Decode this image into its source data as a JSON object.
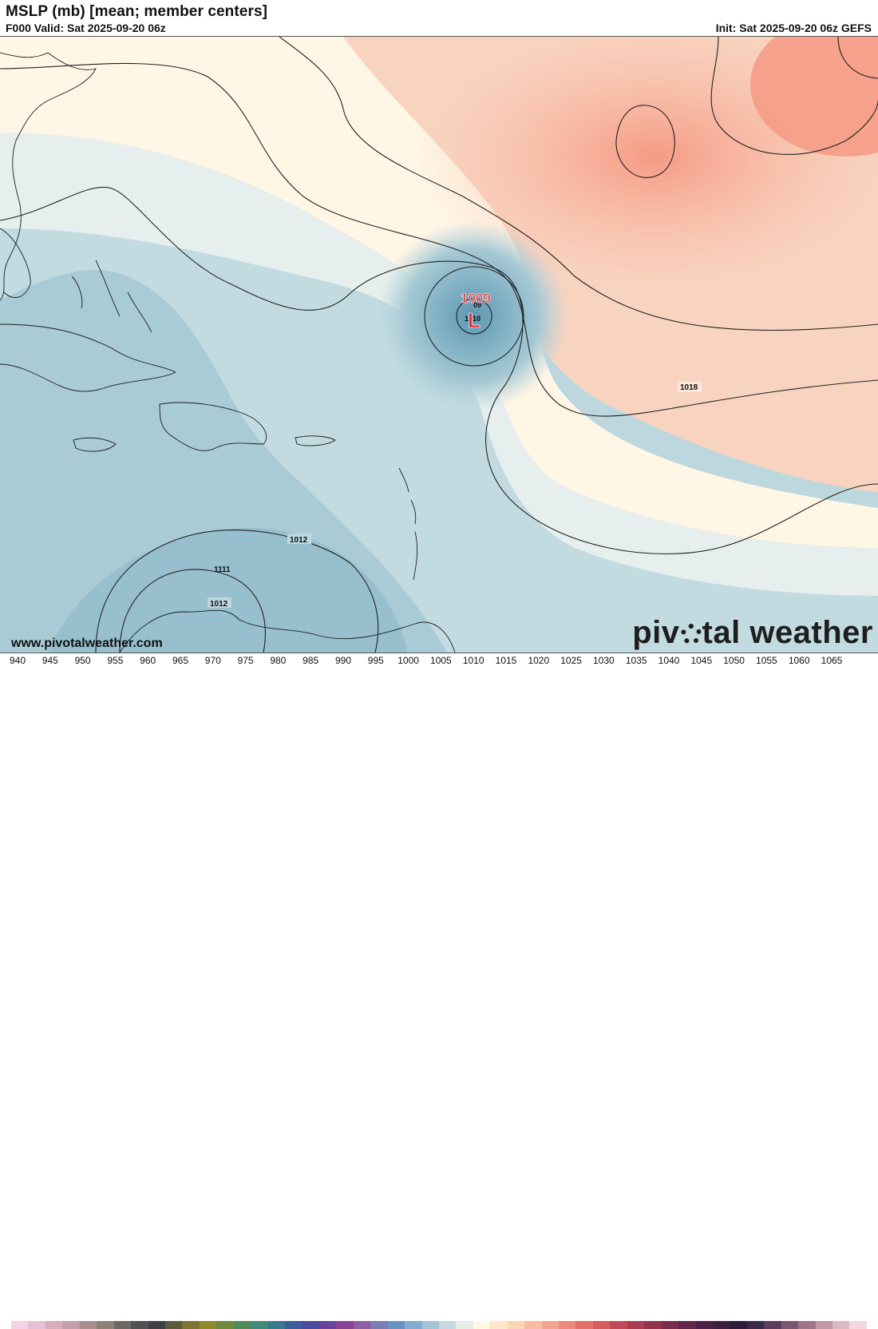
{
  "header": {
    "title": "MSLP (mb) [mean; member centers]",
    "valid": "F000 Valid: Sat 2025-09-20 06z",
    "init": "Init: Sat 2025-09-20 06z GEFS"
  },
  "map": {
    "low_center": {
      "value": "1009",
      "symbol": "L",
      "member_labels": [
        "09",
        "1010"
      ]
    },
    "isobar_labels": [
      "1018",
      "1012",
      "1012",
      "1111"
    ],
    "colors": {
      "high_pressure": "#f6a08a",
      "mid_pressure": "#fff7e6",
      "low_pressure": "#a9cbd6",
      "deep_low": "#6fa6bd",
      "low_marker": "#e83030"
    }
  },
  "footer": {
    "website": "www.pivotalweather.com",
    "brand_left": "piv",
    "brand_right": "tal weather"
  },
  "colorbar": {
    "ticks": [
      "940",
      "945",
      "950",
      "955",
      "960",
      "965",
      "970",
      "975",
      "980",
      "985",
      "990",
      "995",
      "1000",
      "1005",
      "1010",
      "1015",
      "1020",
      "1025",
      "1030",
      "1035",
      "1040",
      "1045",
      "1050",
      "1055",
      "1060",
      "1065"
    ],
    "swatches": [
      "#f4d4e4",
      "#e6c0d4",
      "#d6aebe",
      "#c49ea8",
      "#a8908f",
      "#8c8278",
      "#6c6866",
      "#515153",
      "#3d4044",
      "#5c5a3c",
      "#7c7636",
      "#8f8a2c",
      "#6f8a3c",
      "#4f8a58",
      "#3f8a78",
      "#3a7a8e",
      "#3a5e9a",
      "#4a4a9e",
      "#6a449a",
      "#8a4496",
      "#8e5ea6",
      "#7c7cb6",
      "#6a92c2",
      "#82acd2",
      "#a2c4d8",
      "#c4dae0",
      "#e6eeea",
      "#fff8e4",
      "#fde8cc",
      "#fbd4b6",
      "#f8bca2",
      "#f4a48e",
      "#ee8a7a",
      "#e47068",
      "#d65c5c",
      "#c24a56",
      "#ac3c52",
      "#963450",
      "#7c2c4c",
      "#622648",
      "#4c2246",
      "#3c2040",
      "#2e1c3a",
      "#3a2a4a",
      "#5a3e5c",
      "#7c5870",
      "#9e7688",
      "#c098a4",
      "#dcbac2",
      "#f0d8dc"
    ]
  }
}
